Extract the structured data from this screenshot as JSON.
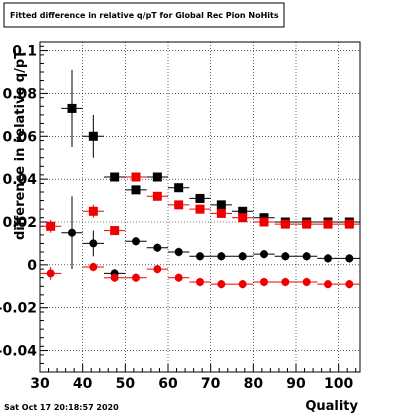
{
  "chart_data": {
    "type": "scatter",
    "title": "Fitted difference in relative q/pT for Global Rec Pion NoHits",
    "xlabel": "Quality",
    "ylabel": "difference in relative q/pT",
    "xlim": [
      30,
      105
    ],
    "ylim": [
      -0.05,
      0.104
    ],
    "xticks": [
      "30",
      "40",
      "50",
      "60",
      "70",
      "80",
      "90",
      "100"
    ],
    "yticks": [
      "0.1",
      "0.08",
      "0.06",
      "0.04",
      "0.02",
      "0",
      "-0.02",
      "-0.04"
    ],
    "ytick_values": [
      0.1,
      0.08,
      0.06,
      0.04,
      0.02,
      0,
      -0.02,
      -0.04
    ],
    "grid": true,
    "timestamp": "Sat Oct 17 20:18:57 2020",
    "colors": {
      "black": "#000000",
      "red": "#ee0000"
    },
    "series": [
      {
        "color": "#000000",
        "marker": "square",
        "x": [
          37.5,
          42.5,
          47.5,
          52.5,
          57.5,
          62.5,
          67.5,
          72.5,
          77.5,
          82.5,
          87.5,
          92.5,
          97.5,
          102.5
        ],
        "y": [
          0.073,
          0.06,
          0.041,
          0.035,
          0.041,
          0.036,
          0.031,
          0.028,
          0.025,
          0.022,
          0.02,
          0.02,
          0.02,
          0.02
        ],
        "yerr": [
          0.018,
          0.01,
          0.002,
          0.002,
          0.002,
          0.002,
          0.002,
          0.002,
          0.002,
          0.002,
          0.002,
          0.002,
          0.002,
          0.002
        ]
      },
      {
        "color": "#ee0000",
        "marker": "square",
        "x": [
          32.5,
          42.5,
          47.5,
          52.5,
          57.5,
          62.5,
          67.5,
          72.5,
          77.5,
          82.5,
          87.5,
          92.5,
          97.5,
          102.5
        ],
        "y": [
          0.018,
          0.025,
          0.016,
          0.041,
          0.032,
          0.028,
          0.026,
          0.024,
          0.022,
          0.02,
          0.019,
          0.019,
          0.019,
          0.019
        ],
        "yerr": [
          0.003,
          0.003,
          0.002,
          0.002,
          0.002,
          0.002,
          0.002,
          0.002,
          0.002,
          0.002,
          0.002,
          0.002,
          0.002,
          0.002
        ]
      },
      {
        "color": "#000000",
        "marker": "circle",
        "x": [
          37.5,
          42.5,
          47.5,
          52.5,
          57.5,
          62.5,
          67.5,
          72.5,
          77.5,
          82.5,
          87.5,
          92.5,
          97.5,
          102.5
        ],
        "y": [
          0.015,
          0.01,
          -0.004,
          0.011,
          0.008,
          0.006,
          0.004,
          0.004,
          0.004,
          0.005,
          0.004,
          0.004,
          0.003,
          0.003
        ],
        "yerr": [
          0.017,
          0.006,
          0.002,
          0.002,
          0.002,
          0.002,
          0.002,
          0.002,
          0.002,
          0.002,
          0.002,
          0.002,
          0.002,
          0.002
        ]
      },
      {
        "color": "#ee0000",
        "marker": "circle",
        "x": [
          32.5,
          42.5,
          47.5,
          52.5,
          57.5,
          62.5,
          67.5,
          72.5,
          77.5,
          82.5,
          87.5,
          92.5,
          97.5,
          102.5
        ],
        "y": [
          -0.004,
          -0.001,
          -0.006,
          -0.006,
          -0.002,
          -0.006,
          -0.008,
          -0.009,
          -0.009,
          -0.008,
          -0.008,
          -0.008,
          -0.009,
          -0.009
        ],
        "yerr": [
          0.003,
          0.002,
          0.002,
          0.002,
          0.002,
          0.002,
          0.002,
          0.002,
          0.002,
          0.002,
          0.002,
          0.002,
          0.002,
          0.002
        ]
      }
    ]
  }
}
